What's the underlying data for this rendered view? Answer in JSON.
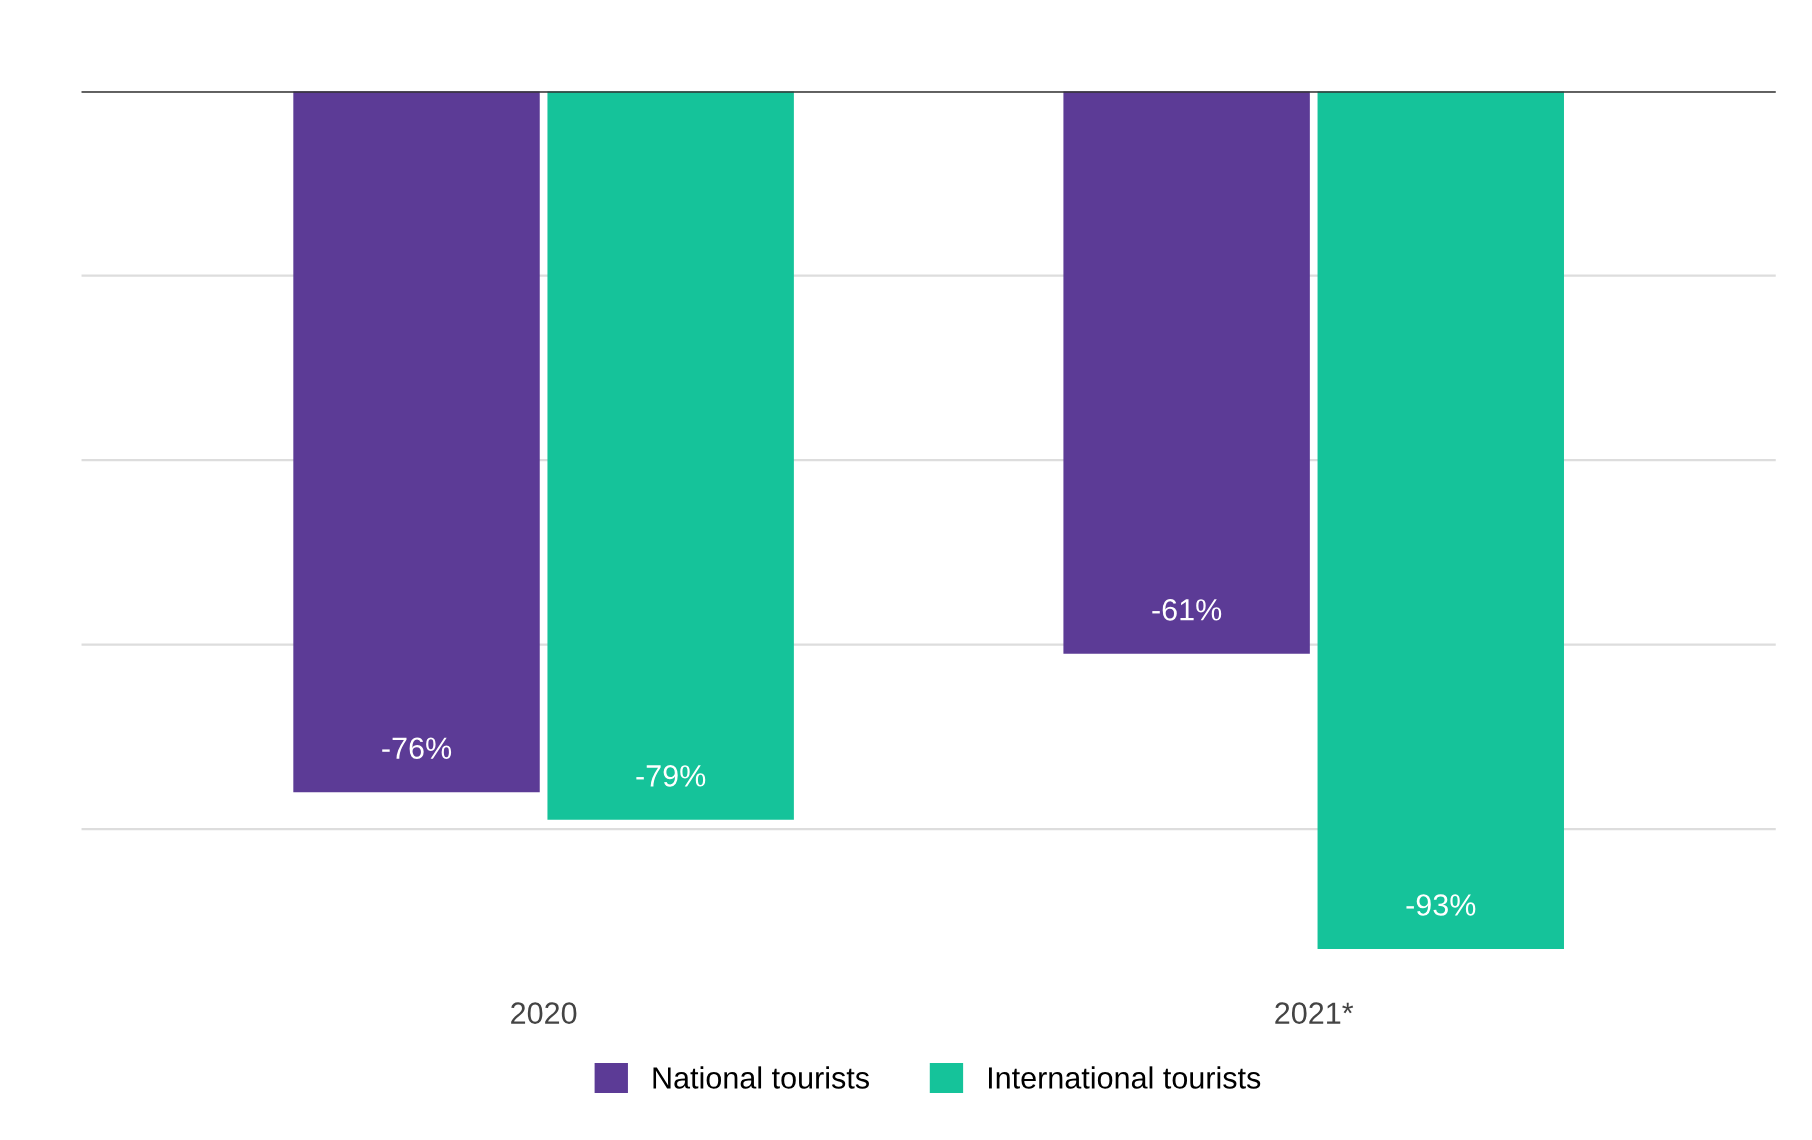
{
  "chart_data": {
    "type": "bar",
    "categories": [
      "2020",
      "2021*"
    ],
    "series": [
      {
        "name": "National tourists",
        "color": "#5c3b96",
        "values": [
          -76,
          -61
        ],
        "value_labels": [
          "-76%",
          "-61%"
        ]
      },
      {
        "name": "International tourists",
        "color": "#15c39a",
        "values": [
          -79,
          -93
        ],
        "value_labels": [
          "-79%",
          "-93%"
        ]
      }
    ],
    "grid": "y",
    "legend": "bottom",
    "tick_labels": "x"
  }
}
